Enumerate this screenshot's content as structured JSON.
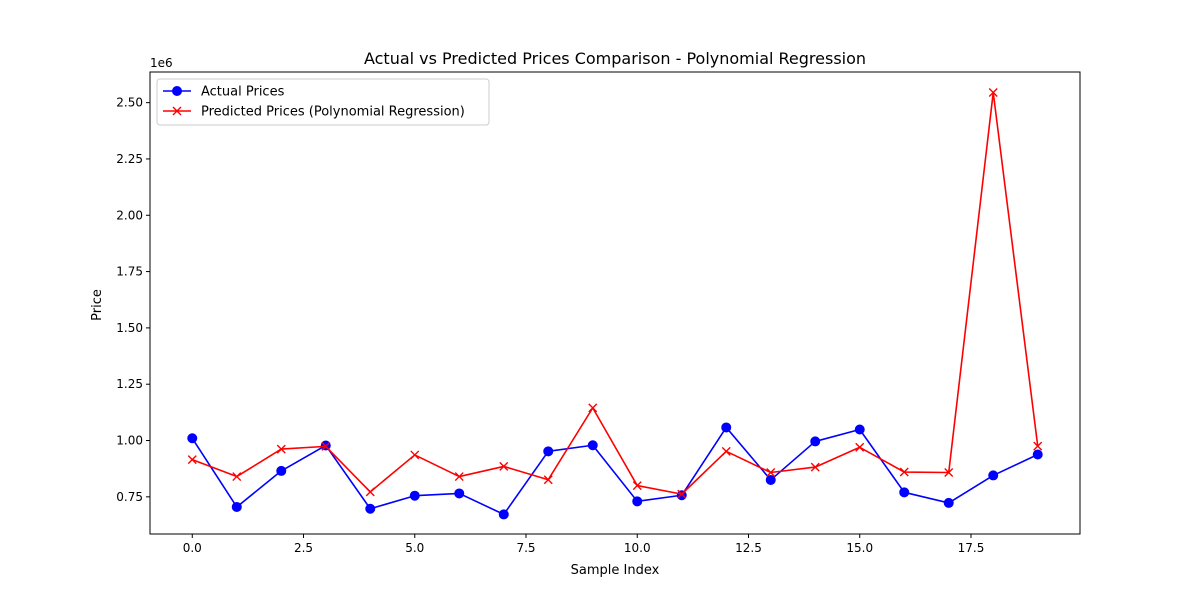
{
  "chart_data": {
    "type": "line",
    "title": "Actual vs Predicted Prices Comparison - Polynomial Regression",
    "xlabel": "Sample Index",
    "ylabel": "Price",
    "y_scale_label": "1e6",
    "xlim": [
      -0.95,
      19.95
    ],
    "ylim": [
      0.585,
      2.636
    ],
    "y_scale": 1000000,
    "x_ticks": [
      0.0,
      2.5,
      5.0,
      7.5,
      10.0,
      12.5,
      15.0,
      17.5
    ],
    "x_tick_labels": [
      "0.0",
      "2.5",
      "5.0",
      "7.5",
      "10.0",
      "12.5",
      "15.0",
      "17.5"
    ],
    "y_ticks": [
      0.75,
      1.0,
      1.25,
      1.5,
      1.75,
      2.0,
      2.25,
      2.5
    ],
    "y_tick_labels": [
      "0.75",
      "1.00",
      "1.25",
      "1.50",
      "1.75",
      "2.00",
      "2.25",
      "2.50"
    ],
    "grid": false,
    "legend_position": "top-left",
    "x": [
      0,
      1,
      2,
      3,
      4,
      5,
      6,
      7,
      8,
      9,
      10,
      11,
      12,
      13,
      14,
      15,
      16,
      17,
      18,
      19
    ],
    "series": [
      {
        "name": "Actual Prices",
        "color": "#0000ff",
        "marker": "circle",
        "values": [
          1.01,
          0.705,
          0.865,
          0.978,
          0.697,
          0.755,
          0.765,
          0.672,
          0.952,
          0.979,
          0.73,
          0.757,
          1.058,
          0.825,
          0.996,
          1.049,
          0.77,
          0.723,
          0.845,
          0.938
        ]
      },
      {
        "name": "Predicted Prices (Polynomial Regression)",
        "color": "#ff0000",
        "marker": "x",
        "values": [
          0.915,
          0.84,
          0.962,
          0.974,
          0.772,
          0.936,
          0.84,
          0.885,
          0.826,
          1.145,
          0.8,
          0.762,
          0.952,
          0.858,
          0.882,
          0.97,
          0.86,
          0.858,
          2.545,
          0.975
        ]
      }
    ]
  }
}
